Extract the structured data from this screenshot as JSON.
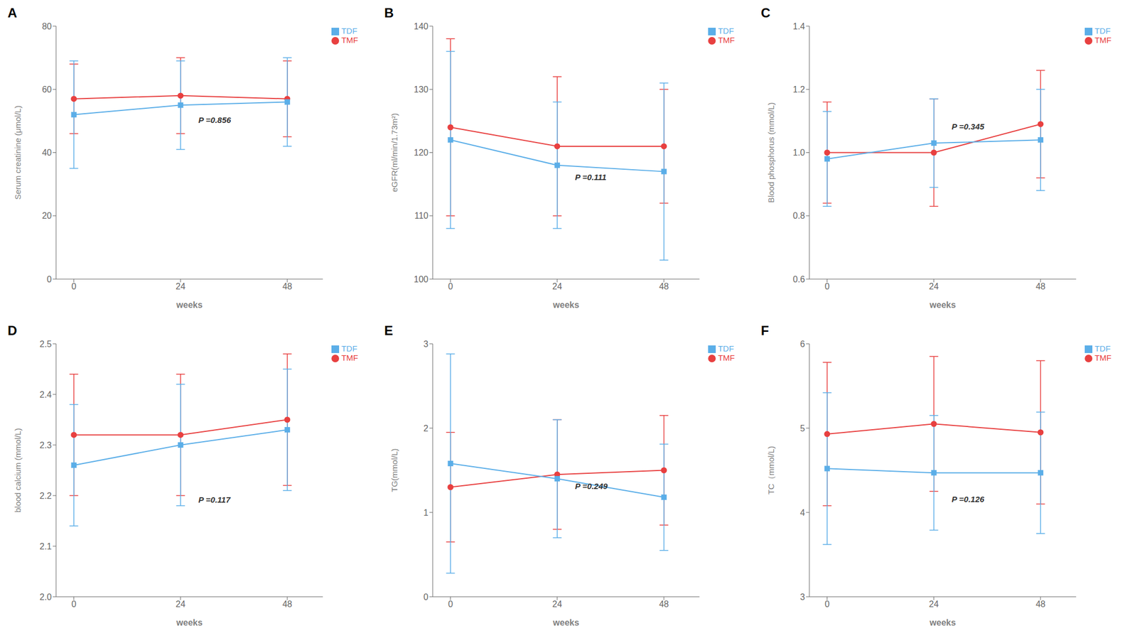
{
  "chart_data": [
    {
      "type": "line",
      "title": "A",
      "xlabel": "weeks",
      "ylabel": "Serum creatinine (μmol/L)",
      "x": [
        0,
        24,
        48
      ],
      "xlim": [
        -4,
        56
      ],
      "xticks": [
        0,
        24,
        48
      ],
      "ylim": [
        0,
        80
      ],
      "yticks": [
        0,
        20,
        40,
        60,
        80
      ],
      "grid": false,
      "legend": "upper right",
      "annotations": [
        {
          "text": "P =0.856",
          "x": 28,
          "y": 50
        }
      ],
      "series": [
        {
          "name": "TMF",
          "color": "#E84040",
          "marker": "circle",
          "values": [
            57,
            58,
            57
          ],
          "errors": [
            11,
            12,
            12
          ]
        },
        {
          "name": "TDF",
          "color": "#5BAEE8",
          "marker": "square",
          "values": [
            52,
            55,
            56
          ],
          "errors": [
            17,
            14,
            14
          ]
        }
      ]
    },
    {
      "type": "line",
      "title": "B",
      "xlabel": "weeks",
      "ylabel": "eGFR(ml/min/1.73m²)",
      "x": [
        0,
        24,
        48
      ],
      "xlim": [
        -4,
        56
      ],
      "xticks": [
        0,
        24,
        48
      ],
      "ylim": [
        100,
        140
      ],
      "yticks": [
        100,
        110,
        120,
        130,
        140
      ],
      "grid": false,
      "legend": "upper right",
      "annotations": [
        {
          "text": "P =0.111",
          "x": 28,
          "y": 116
        }
      ],
      "series": [
        {
          "name": "TMF",
          "color": "#E84040",
          "marker": "circle",
          "values": [
            124,
            121,
            121
          ],
          "errors": [
            14,
            11,
            9
          ]
        },
        {
          "name": "TDF",
          "color": "#5BAEE8",
          "marker": "square",
          "values": [
            122,
            118,
            117
          ],
          "errors": [
            14,
            10,
            14
          ]
        }
      ]
    },
    {
      "type": "line",
      "title": "C",
      "xlabel": "weeks",
      "ylabel": "Blood phosphorus (mmol/L)",
      "x": [
        0,
        24,
        48
      ],
      "xlim": [
        -4,
        56
      ],
      "xticks": [
        0,
        24,
        48
      ],
      "ylim": [
        0.6,
        1.4
      ],
      "yticks": [
        0.6,
        0.8,
        {
          "value": 1.0,
          "label": "1.0"
        },
        1.2,
        1.4
      ],
      "grid": false,
      "legend": "upper right",
      "annotations": [
        {
          "text": "P =0.345",
          "x": 28,
          "y": 1.08
        }
      ],
      "series": [
        {
          "name": "TMF",
          "color": "#E84040",
          "marker": "circle",
          "values": [
            1.0,
            1.0,
            1.09
          ],
          "errors": [
            0.16,
            0.17,
            0.17
          ]
        },
        {
          "name": "TDF",
          "color": "#5BAEE8",
          "marker": "square",
          "values": [
            0.98,
            1.03,
            1.04
          ],
          "errors": [
            0.15,
            0.14,
            0.16
          ]
        }
      ]
    },
    {
      "type": "line",
      "title": "D",
      "xlabel": "weeks",
      "ylabel": "blood calcium (mmol/L)",
      "x": [
        0,
        24,
        48
      ],
      "xlim": [
        -4,
        56
      ],
      "xticks": [
        0,
        24,
        48
      ],
      "ylim": [
        2.0,
        2.5
      ],
      "yticks": [
        {
          "value": 2.0,
          "label": "2.0"
        },
        2.1,
        2.2,
        2.3,
        2.4,
        2.5
      ],
      "grid": false,
      "legend": "upper right",
      "annotations": [
        {
          "text": "P =0.117",
          "x": 28,
          "y": 2.19
        }
      ],
      "series": [
        {
          "name": "TMF",
          "color": "#E84040",
          "marker": "circle",
          "values": [
            2.32,
            2.32,
            2.35
          ],
          "errors": [
            0.12,
            0.12,
            0.13
          ]
        },
        {
          "name": "TDF",
          "color": "#5BAEE8",
          "marker": "square",
          "values": [
            2.26,
            2.3,
            2.33
          ],
          "errors": [
            0.12,
            0.12,
            0.12
          ]
        }
      ]
    },
    {
      "type": "line",
      "title": "E",
      "xlabel": "weeks",
      "ylabel": "TG(mmol/L)",
      "x": [
        0,
        24,
        48
      ],
      "xlim": [
        -4,
        56
      ],
      "xticks": [
        0,
        24,
        48
      ],
      "ylim": [
        0,
        3
      ],
      "yticks": [
        0,
        1,
        2,
        3
      ],
      "grid": false,
      "legend": "upper right",
      "annotations": [
        {
          "text": "P =0.249",
          "x": 28,
          "y": 1.3
        }
      ],
      "series": [
        {
          "name": "TMF",
          "color": "#E84040",
          "marker": "circle",
          "values": [
            1.3,
            1.45,
            1.5
          ],
          "errors": [
            0.65,
            0.65,
            0.65
          ]
        },
        {
          "name": "TDF",
          "color": "#5BAEE8",
          "marker": "square",
          "values": [
            1.58,
            1.4,
            1.18
          ],
          "errors": [
            1.3,
            0.7,
            0.63
          ]
        }
      ]
    },
    {
      "type": "line",
      "title": "F",
      "xlabel": "weeks",
      "ylabel": "TC（mmol/L)",
      "x": [
        0,
        24,
        48
      ],
      "xlim": [
        -4,
        56
      ],
      "xticks": [
        0,
        24,
        48
      ],
      "ylim": [
        3,
        6
      ],
      "yticks": [
        3,
        4,
        5,
        6
      ],
      "grid": false,
      "legend": "upper right",
      "annotations": [
        {
          "text": "P =0.126",
          "x": 28,
          "y": 4.15
        }
      ],
      "series": [
        {
          "name": "TMF",
          "color": "#E84040",
          "marker": "circle",
          "values": [
            4.93,
            5.05,
            4.95
          ],
          "errors": [
            0.85,
            0.8,
            0.85
          ]
        },
        {
          "name": "TDF",
          "color": "#5BAEE8",
          "marker": "square",
          "values": [
            4.52,
            4.47,
            4.47
          ],
          "errors": [
            0.9,
            0.68,
            0.72
          ]
        }
      ]
    }
  ]
}
